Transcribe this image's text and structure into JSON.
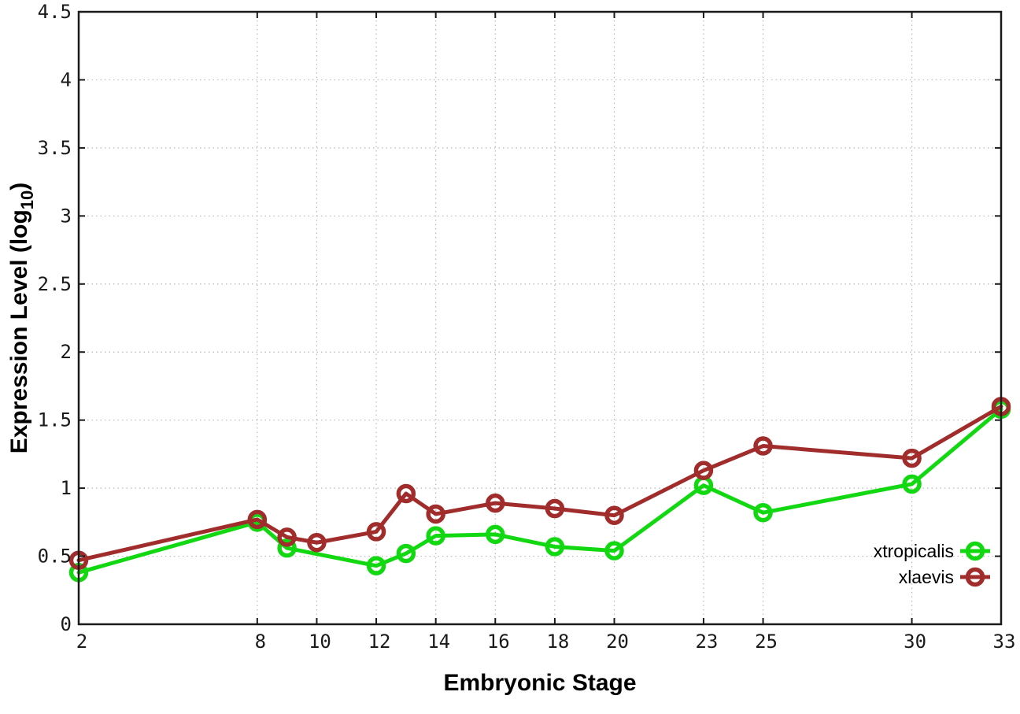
{
  "chart_data": {
    "type": "line",
    "title": "",
    "xlabel": "Embryonic Stage",
    "ylabel_main": "Expression Level (log",
    "ylabel_sub": "10",
    "ylabel_close": ")",
    "x_range": [
      2,
      33
    ],
    "y_range": [
      0,
      4.5
    ],
    "x_ticks": [
      2,
      8,
      10,
      12,
      14,
      16,
      18,
      20,
      23,
      25,
      30,
      33
    ],
    "y_ticks": [
      0,
      0.5,
      1,
      1.5,
      2,
      2.5,
      3,
      3.5,
      4,
      4.5
    ],
    "grid": true,
    "legend_position": "inside-bottom-right",
    "background_color": "#ffffff",
    "axis_color": "#1a1a1a",
    "grid_color": "#b8b8b8",
    "series": [
      {
        "name": "xtropicalis",
        "color": "#12d812",
        "marker": "open-circle",
        "points": [
          [
            2,
            0.38
          ],
          [
            8,
            0.75
          ],
          [
            9,
            0.56
          ],
          [
            12,
            0.43
          ],
          [
            13,
            0.52
          ],
          [
            14,
            0.65
          ],
          [
            16,
            0.66
          ],
          [
            18,
            0.57
          ],
          [
            20,
            0.54
          ],
          [
            23,
            1.02
          ],
          [
            25,
            0.82
          ],
          [
            30,
            1.03
          ],
          [
            33,
            1.58
          ]
        ]
      },
      {
        "name": "xlaevis",
        "color": "#a02c2c",
        "marker": "open-circle",
        "points": [
          [
            2,
            0.47
          ],
          [
            8,
            0.77
          ],
          [
            9,
            0.64
          ],
          [
            10,
            0.6
          ],
          [
            12,
            0.68
          ],
          [
            13,
            0.96
          ],
          [
            14,
            0.81
          ],
          [
            16,
            0.89
          ],
          [
            18,
            0.85
          ],
          [
            20,
            0.8
          ],
          [
            23,
            1.13
          ],
          [
            25,
            1.31
          ],
          [
            30,
            1.22
          ],
          [
            33,
            1.6
          ]
        ]
      }
    ]
  }
}
